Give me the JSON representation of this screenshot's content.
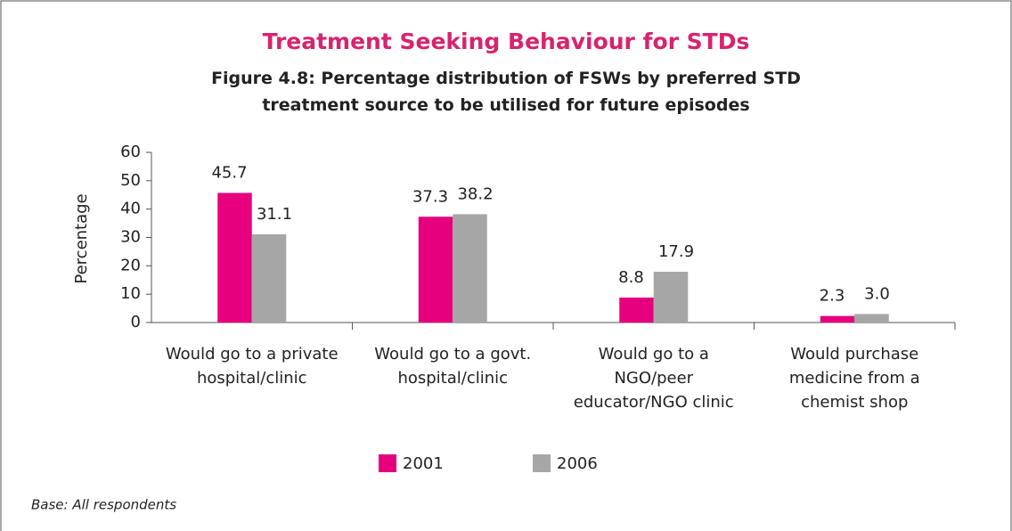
{
  "chart_data": {
    "type": "bar",
    "title": "Treatment Seeking Behaviour for STDs",
    "subtitle": "Figure 4.8: Percentage distribution of FSWs by preferred STD\ntreatment source to be utilised for future episodes",
    "ylabel": "Percentage",
    "note": "Base: All respondents",
    "categories": [
      "Would go to a private\nhospital/clinic",
      "Would go to a govt.\nhospital/clinic",
      "Would go to a\nNGO/peer\neducator/NGO clinic",
      "Would purchase\nmedicine from a\nchemist shop"
    ],
    "series": [
      {
        "name": "2001",
        "color": "#e6007e",
        "values": [
          45.7,
          37.3,
          8.8,
          2.3
        ],
        "value_labels": [
          "45.7",
          "37.3",
          "8.8",
          "2.3"
        ]
      },
      {
        "name": "2006",
        "color": "#a6a6a6",
        "values": [
          31.1,
          38.2,
          17.9,
          3.0
        ],
        "value_labels": [
          "31.1",
          "38.2",
          "17.9",
          "3.0"
        ]
      }
    ],
    "ylim": [
      0,
      60
    ],
    "yticks": [
      0,
      10,
      20,
      30,
      40,
      50,
      60
    ],
    "grid": false,
    "legend": "bottom"
  }
}
